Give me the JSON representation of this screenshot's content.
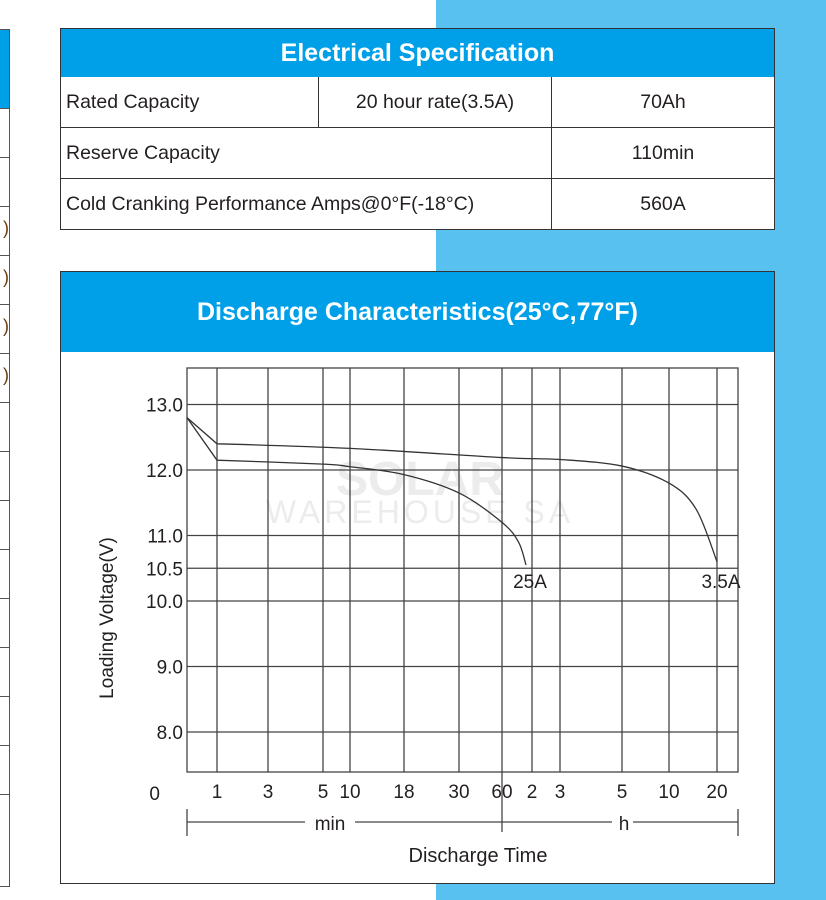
{
  "colors": {
    "header_blue": "#00a0e9",
    "background_blue": "#58c1f0"
  },
  "left_table": {
    "partial_glyphs": [
      ")",
      ")",
      ")",
      ")"
    ]
  },
  "electrical_spec": {
    "title": "Electrical Specification",
    "rows": [
      {
        "label": "Rated Capacity",
        "condition": "20 hour rate(3.5A)",
        "value": "70Ah"
      },
      {
        "label": "Reserve Capacity",
        "value": "110min"
      },
      {
        "label": "Cold Cranking Performance Amps@0°F(-18°C)",
        "value": "560A"
      }
    ]
  },
  "chart_data": {
    "type": "line",
    "title": "Discharge Characteristics(25°C,77°F)",
    "ylabel": "Loading Voltage(V)",
    "xlabel": "Discharge Time",
    "y_ticks": [
      "13.0",
      "12.0",
      "11.0",
      "10.5",
      "10.0",
      "9.0",
      "8.0"
    ],
    "y_origin_label": "0",
    "x_tick_labels": [
      "1",
      "3",
      "5",
      "10",
      "18",
      "30",
      "60",
      "2",
      "3",
      "5",
      "10",
      "20"
    ],
    "x_tick_minutes": [
      1,
      3,
      5,
      10,
      18,
      30,
      60,
      120,
      180,
      300,
      600,
      1200
    ],
    "x_unit_labels": {
      "minutes": "min",
      "hours": "h"
    },
    "grid": true,
    "series": [
      {
        "name": "3.5A",
        "points": [
          [
            0,
            12.8
          ],
          [
            1,
            12.4
          ],
          [
            10,
            12.33
          ],
          [
            60,
            12.19
          ],
          [
            180,
            12.16
          ],
          [
            300,
            12.06
          ],
          [
            600,
            11.8
          ],
          [
            940,
            11.4
          ],
          [
            1200,
            10.6
          ]
        ]
      },
      {
        "name": "25A",
        "points": [
          [
            0,
            12.8
          ],
          [
            1,
            12.15
          ],
          [
            5,
            12.09
          ],
          [
            10,
            12.05
          ],
          [
            18,
            11.93
          ],
          [
            30,
            11.65
          ],
          [
            60,
            11.2
          ],
          [
            93,
            10.9
          ],
          [
            108,
            10.55
          ]
        ]
      }
    ]
  }
}
